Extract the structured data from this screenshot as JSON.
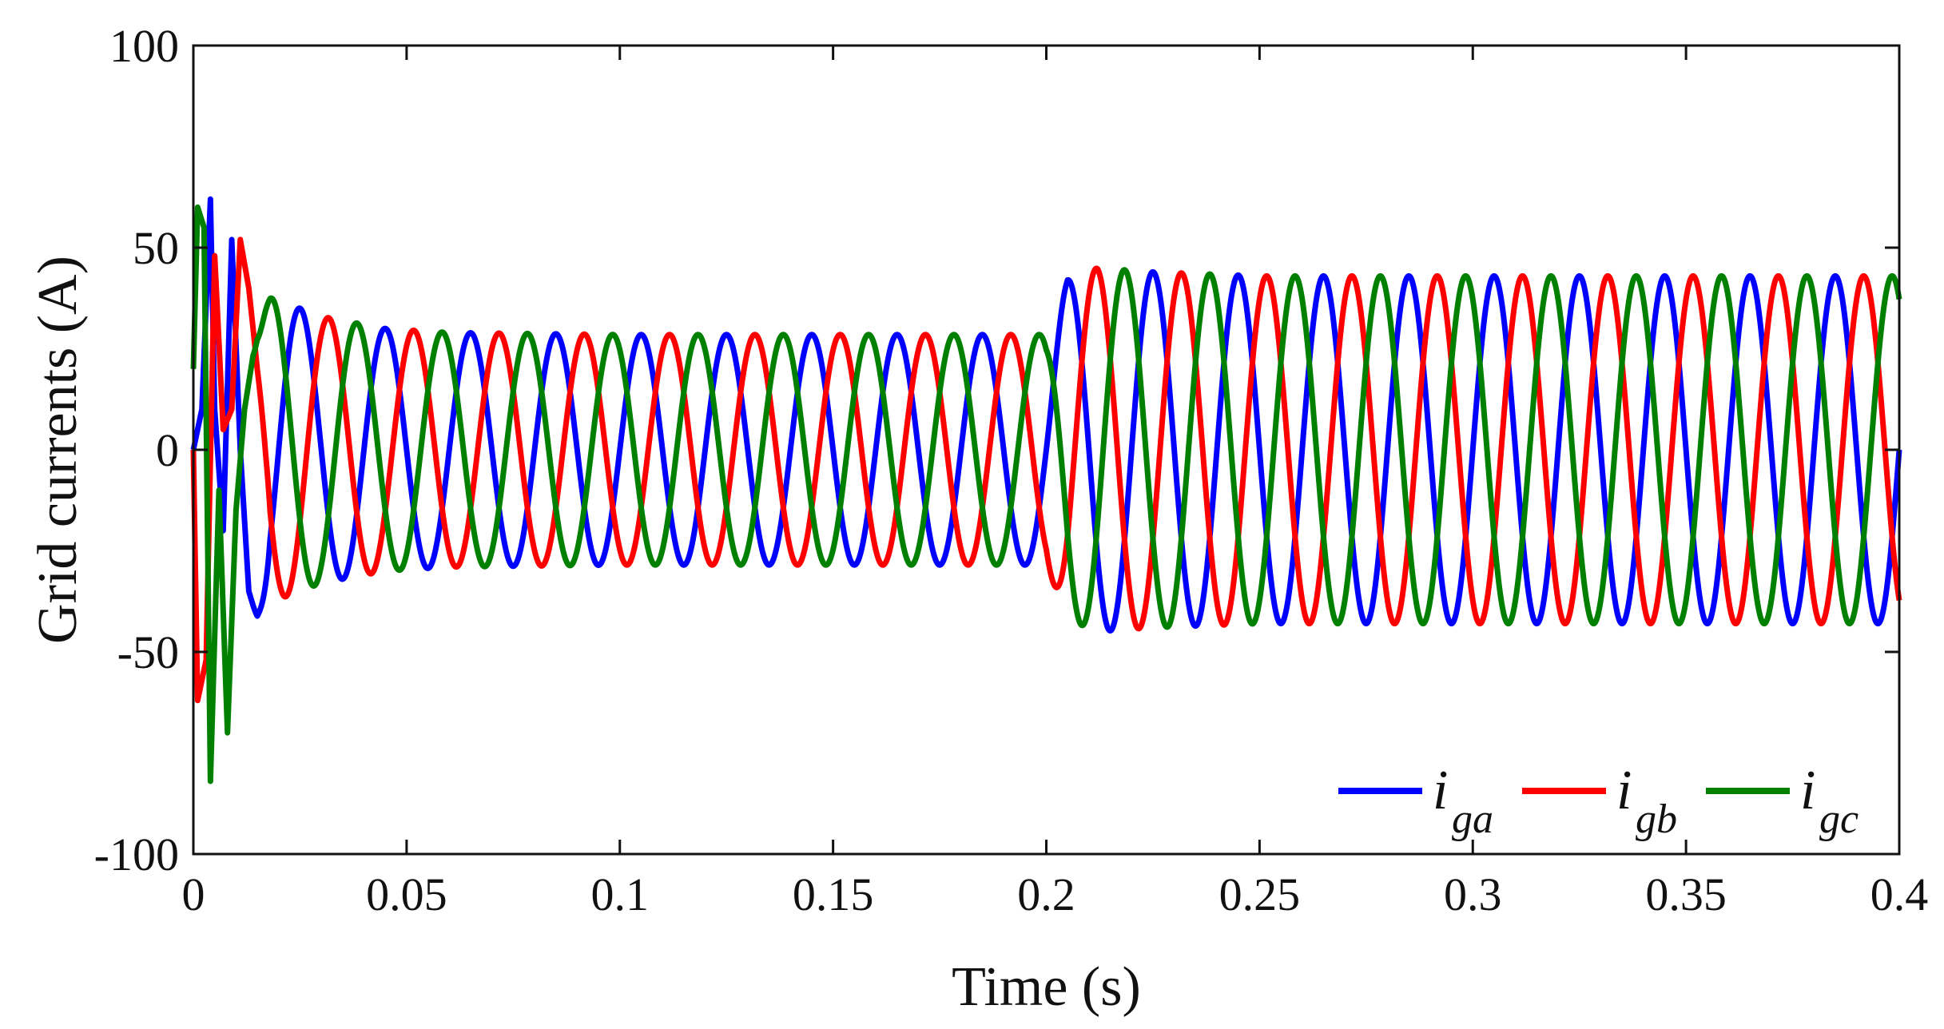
{
  "chart_data": {
    "type": "line",
    "title": "",
    "xlabel": "Time (s)",
    "ylabel": "Grid currents (A)",
    "xlim": [
      0,
      0.4
    ],
    "ylim": [
      -100,
      100
    ],
    "x_ticks": [
      0,
      0.05,
      0.1,
      0.15,
      0.2,
      0.25,
      0.3,
      0.35,
      0.4
    ],
    "x_tick_labels": [
      "0",
      "0.05",
      "0.1",
      "0.15",
      "0.2",
      "0.25",
      "0.3",
      "0.35",
      "0.4"
    ],
    "y_ticks": [
      -100,
      -50,
      0,
      50,
      100
    ],
    "y_tick_labels": [
      "-100",
      "-50",
      "0",
      "50",
      "100"
    ],
    "grid": false,
    "legend_position": "bottom-right",
    "legend_orientation": "horizontal",
    "signal": {
      "frequency_hz": 50,
      "phase_offsets_deg": [
        0,
        -120,
        120
      ],
      "envelope": [
        [
          0,
          55
        ],
        [
          0.01,
          40
        ],
        [
          0.02,
          37
        ],
        [
          0.03,
          33
        ],
        [
          0.045,
          30
        ],
        [
          0.06,
          29
        ],
        [
          0.1,
          28.5
        ],
        [
          0.2,
          28.5
        ],
        [
          0.205,
          42
        ],
        [
          0.212,
          45
        ],
        [
          0.225,
          44
        ],
        [
          0.25,
          43
        ],
        [
          0.4,
          43
        ]
      ],
      "startup_transient": {
        "start": 0,
        "end": 0.018,
        "points": {
          "i_ga": [
            [
              0,
              0
            ],
            [
              0.002,
              10
            ],
            [
              0.004,
              62
            ],
            [
              0.005,
              10
            ],
            [
              0.007,
              -20
            ],
            [
              0.009,
              52
            ],
            [
              0.011,
              0
            ],
            [
              0.013,
              -35
            ],
            [
              0.015,
              -42
            ],
            [
              0.017,
              -39
            ]
          ],
          "i_gb": [
            [
              0,
              0
            ],
            [
              0.001,
              -62
            ],
            [
              0.003,
              -52
            ],
            [
              0.005,
              48
            ],
            [
              0.007,
              5
            ],
            [
              0.009,
              10
            ],
            [
              0.011,
              52
            ],
            [
              0.013,
              40
            ],
            [
              0.015,
              20
            ],
            [
              0.017,
              5
            ]
          ],
          "i_gc": [
            [
              0,
              20
            ],
            [
              0.001,
              60
            ],
            [
              0.0025,
              55
            ],
            [
              0.004,
              -82
            ],
            [
              0.006,
              -10
            ],
            [
              0.008,
              -70
            ],
            [
              0.01,
              -15
            ],
            [
              0.012,
              10
            ],
            [
              0.015,
              30
            ],
            [
              0.017,
              35
            ]
          ]
        }
      }
    },
    "series": [
      {
        "id": "i_ga",
        "name": "i",
        "subscript": "ga",
        "color": "#0000ff",
        "phase_deg": 0
      },
      {
        "id": "i_gb",
        "name": "i",
        "subscript": "gb",
        "color": "#ff0000",
        "phase_deg": -120
      },
      {
        "id": "i_gc",
        "name": "i",
        "subscript": "gc",
        "color": "#008000",
        "phase_deg": 120
      }
    ]
  }
}
